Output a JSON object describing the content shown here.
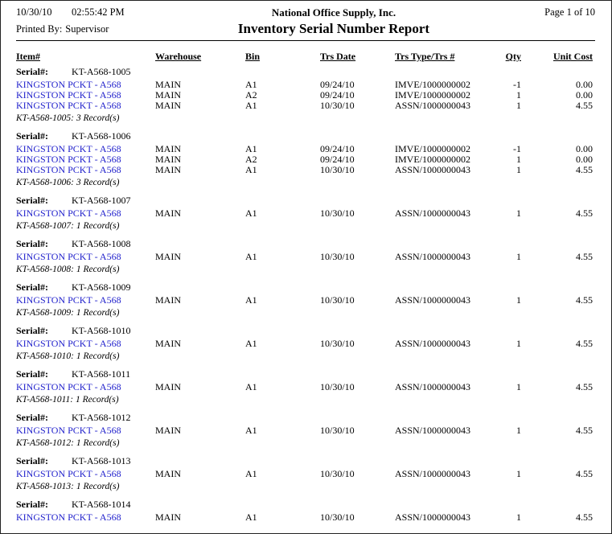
{
  "colors": {
    "link": "#2222CC"
  },
  "header": {
    "print_date": "10/30/10",
    "print_time": "02:55:42 PM",
    "printed_by_label": "Printed By:",
    "printed_by": "Supervisor",
    "company": "National Office Supply, Inc.",
    "title": "Inventory Serial Number Report",
    "page_label": "Page 1 of 10"
  },
  "columns": [
    "Item#",
    "Warehouse",
    "Bin",
    "Trs Date",
    "Trs Type/Trs #",
    "Qty",
    "Unit Cost"
  ],
  "serial_label": "Serial#:",
  "groups": [
    {
      "serial": "KT-A568-1005",
      "summary": "KT-A568-1005: 3 Record(s)",
      "rows": [
        {
          "item": "KINGSTON PCKT - A568",
          "warehouse": "MAIN",
          "bin": "A1",
          "trs_date": "09/24/10",
          "trs_type": "IMVE/1000000002",
          "qty": "-1",
          "unit_cost": "0.00"
        },
        {
          "item": "KINGSTON PCKT - A568",
          "warehouse": "MAIN",
          "bin": "A2",
          "trs_date": "09/24/10",
          "trs_type": "IMVE/1000000002",
          "qty": "1",
          "unit_cost": "0.00"
        },
        {
          "item": "KINGSTON PCKT - A568",
          "warehouse": "MAIN",
          "bin": "A1",
          "trs_date": "10/30/10",
          "trs_type": "ASSN/1000000043",
          "qty": "1",
          "unit_cost": "4.55"
        }
      ]
    },
    {
      "serial": "KT-A568-1006",
      "summary": "KT-A568-1006: 3 Record(s)",
      "rows": [
        {
          "item": "KINGSTON PCKT - A568",
          "warehouse": "MAIN",
          "bin": "A1",
          "trs_date": "09/24/10",
          "trs_type": "IMVE/1000000002",
          "qty": "-1",
          "unit_cost": "0.00"
        },
        {
          "item": "KINGSTON PCKT - A568",
          "warehouse": "MAIN",
          "bin": "A2",
          "trs_date": "09/24/10",
          "trs_type": "IMVE/1000000002",
          "qty": "1",
          "unit_cost": "0.00"
        },
        {
          "item": "KINGSTON PCKT - A568",
          "warehouse": "MAIN",
          "bin": "A1",
          "trs_date": "10/30/10",
          "trs_type": "ASSN/1000000043",
          "qty": "1",
          "unit_cost": "4.55"
        }
      ]
    },
    {
      "serial": "KT-A568-1007",
      "summary": "KT-A568-1007: 1 Record(s)",
      "rows": [
        {
          "item": "KINGSTON PCKT - A568",
          "warehouse": "MAIN",
          "bin": "A1",
          "trs_date": "10/30/10",
          "trs_type": "ASSN/1000000043",
          "qty": "1",
          "unit_cost": "4.55"
        }
      ]
    },
    {
      "serial": "KT-A568-1008",
      "summary": "KT-A568-1008: 1 Record(s)",
      "rows": [
        {
          "item": "KINGSTON PCKT - A568",
          "warehouse": "MAIN",
          "bin": "A1",
          "trs_date": "10/30/10",
          "trs_type": "ASSN/1000000043",
          "qty": "1",
          "unit_cost": "4.55"
        }
      ]
    },
    {
      "serial": "KT-A568-1009",
      "summary": "KT-A568-1009: 1 Record(s)",
      "rows": [
        {
          "item": "KINGSTON PCKT - A568",
          "warehouse": "MAIN",
          "bin": "A1",
          "trs_date": "10/30/10",
          "trs_type": "ASSN/1000000043",
          "qty": "1",
          "unit_cost": "4.55"
        }
      ]
    },
    {
      "serial": "KT-A568-1010",
      "summary": "KT-A568-1010: 1 Record(s)",
      "rows": [
        {
          "item": "KINGSTON PCKT - A568",
          "warehouse": "MAIN",
          "bin": "A1",
          "trs_date": "10/30/10",
          "trs_type": "ASSN/1000000043",
          "qty": "1",
          "unit_cost": "4.55"
        }
      ]
    },
    {
      "serial": "KT-A568-1011",
      "summary": "KT-A568-1011: 1 Record(s)",
      "rows": [
        {
          "item": "KINGSTON PCKT - A568",
          "warehouse": "MAIN",
          "bin": "A1",
          "trs_date": "10/30/10",
          "trs_type": "ASSN/1000000043",
          "qty": "1",
          "unit_cost": "4.55"
        }
      ]
    },
    {
      "serial": "KT-A568-1012",
      "summary": "KT-A568-1012: 1 Record(s)",
      "rows": [
        {
          "item": "KINGSTON PCKT - A568",
          "warehouse": "MAIN",
          "bin": "A1",
          "trs_date": "10/30/10",
          "trs_type": "ASSN/1000000043",
          "qty": "1",
          "unit_cost": "4.55"
        }
      ]
    },
    {
      "serial": "KT-A568-1013",
      "summary": "KT-A568-1013: 1 Record(s)",
      "rows": [
        {
          "item": "KINGSTON PCKT - A568",
          "warehouse": "MAIN",
          "bin": "A1",
          "trs_date": "10/30/10",
          "trs_type": "ASSN/1000000043",
          "qty": "1",
          "unit_cost": "4.55"
        }
      ]
    },
    {
      "serial": "KT-A568-1014",
      "summary": null,
      "rows": [
        {
          "item": "KINGSTON PCKT - A568",
          "warehouse": "MAIN",
          "bin": "A1",
          "trs_date": "10/30/10",
          "trs_type": "ASSN/1000000043",
          "qty": "1",
          "unit_cost": "4.55"
        }
      ]
    }
  ]
}
